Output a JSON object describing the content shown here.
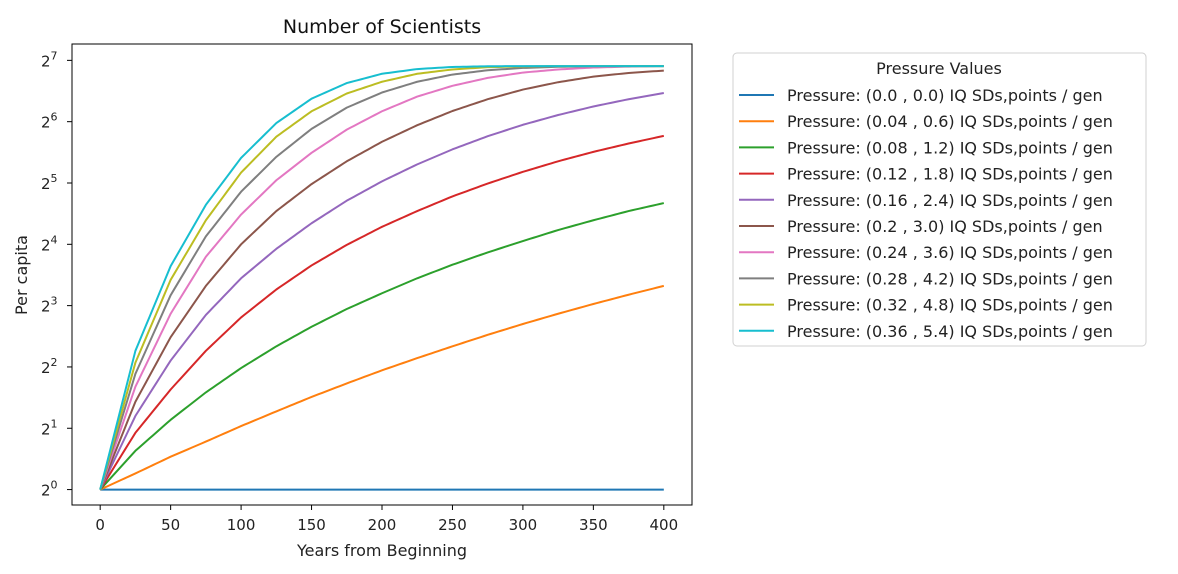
{
  "chart_data": {
    "type": "line",
    "title": "Number of Scientists",
    "xlabel": "Years from Beginning",
    "ylabel": "Per capita",
    "xlim": [
      -20,
      420
    ],
    "ylim": [
      0.84,
      154
    ],
    "y_scale": "log2",
    "x_ticks": [
      0,
      50,
      100,
      150,
      200,
      250,
      300,
      350,
      400
    ],
    "y_ticks": [
      {
        "value": 1,
        "base": "2",
        "exp": "0"
      },
      {
        "value": 2,
        "base": "2",
        "exp": "1"
      },
      {
        "value": 4,
        "base": "2",
        "exp": "2"
      },
      {
        "value": 8,
        "base": "2",
        "exp": "3"
      },
      {
        "value": 16,
        "base": "2",
        "exp": "4"
      },
      {
        "value": 32,
        "base": "2",
        "exp": "5"
      },
      {
        "value": 64,
        "base": "2",
        "exp": "6"
      },
      {
        "value": 128,
        "base": "2",
        "exp": "7"
      }
    ],
    "grid": false,
    "legend": {
      "title": "Pressure Values",
      "placement": "outside-right"
    },
    "x": [
      0,
      25,
      50,
      75,
      100,
      125,
      150,
      175,
      200,
      225,
      250,
      275,
      300,
      325,
      350,
      375,
      400
    ],
    "series": [
      {
        "name": "Pressure: (0.0 , 0.0) IQ SDs,points / gen",
        "color": "#1f77b4",
        "values": [
          1,
          1,
          1,
          1,
          1,
          1,
          1,
          1,
          1,
          1,
          1,
          1,
          1,
          1,
          1,
          1,
          1
        ]
      },
      {
        "name": "Pressure: (0.04 , 0.6) IQ SDs,points / gen",
        "color": "#ff7f0e",
        "values": [
          1,
          1.2,
          1.45,
          1.72,
          2.05,
          2.42,
          2.85,
          3.32,
          3.85,
          4.42,
          5.05,
          5.75,
          6.5,
          7.3,
          8.15,
          9.05,
          10.0
        ]
      },
      {
        "name": "Pressure: (0.08 , 1.2) IQ SDs,points / gen",
        "color": "#2ca02c",
        "values": [
          1,
          1.55,
          2.2,
          3.0,
          3.95,
          5.05,
          6.3,
          7.7,
          9.2,
          10.9,
          12.7,
          14.6,
          16.6,
          18.8,
          21.0,
          23.3,
          25.5
        ]
      },
      {
        "name": "Pressure: (0.12 , 1.8) IQ SDs,points / gen",
        "color": "#d62728",
        "values": [
          1,
          1.9,
          3.1,
          4.8,
          7.0,
          9.6,
          12.6,
          15.9,
          19.5,
          23.3,
          27.5,
          31.8,
          36.3,
          40.9,
          45.5,
          50.0,
          54.5
        ]
      },
      {
        "name": "Pressure: (0.16 , 2.4) IQ SDs,points / gen",
        "color": "#9467bd",
        "values": [
          1,
          2.3,
          4.3,
          7.2,
          10.9,
          15.2,
          20.3,
          26.2,
          32.6,
          39.5,
          46.8,
          54.3,
          61.8,
          69.0,
          76.0,
          82.5,
          88.5
        ]
      },
      {
        "name": "Pressure: (0.2 , 3.0) IQ SDs,points / gen",
        "color": "#8c564b",
        "values": [
          1,
          2.7,
          5.6,
          10.0,
          16.0,
          23.3,
          31.6,
          40.9,
          51.0,
          61.5,
          72.2,
          82.5,
          92.0,
          100.0,
          106.5,
          111.0,
          114.0
        ]
      },
      {
        "name": "Pressure: (0.24 , 3.6) IQ SDs,points / gen",
        "color": "#e377c2",
        "values": [
          1,
          3.2,
          7.3,
          13.9,
          22.4,
          33.0,
          45.0,
          58.5,
          72.0,
          85.0,
          96.0,
          105.0,
          111.5,
          115.5,
          118.0,
          119.3,
          120.0
        ]
      },
      {
        "name": "Pressure: (0.28 , 4.2) IQ SDs,points / gen",
        "color": "#7f7f7f",
        "values": [
          1,
          3.7,
          9.0,
          17.5,
          29.0,
          43.0,
          59.0,
          75.0,
          89.0,
          100.5,
          109.0,
          114.5,
          117.5,
          119.0,
          119.8,
          120.0,
          120.0
        ]
      },
      {
        "name": "Pressure: (0.32 , 4.8) IQ SDs,points / gen",
        "color": "#bcbd22",
        "values": [
          1,
          4.2,
          10.7,
          21.0,
          36.0,
          54.0,
          72.0,
          88.0,
          100.5,
          110.0,
          115.5,
          118.5,
          119.5,
          120.0,
          120.0,
          120.0,
          120.0
        ]
      },
      {
        "name": "Pressure: (0.36 , 5.4) IQ SDs,points / gen",
        "color": "#17becf",
        "values": [
          1,
          4.8,
          12.5,
          25.0,
          42.5,
          63.0,
          83.0,
          99.0,
          110.0,
          116.0,
          118.8,
          119.7,
          120.0,
          120.0,
          120.0,
          120.0,
          120.0
        ]
      }
    ]
  }
}
